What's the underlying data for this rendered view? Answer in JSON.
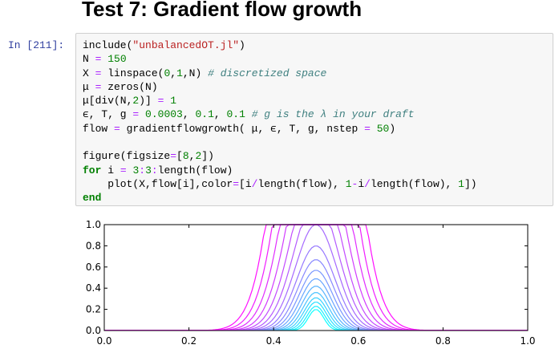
{
  "heading": "Test 7: Gradient flow growth",
  "cell": {
    "prompt": "In [211]:",
    "lines": [
      [
        [
          "fn",
          "include("
        ],
        [
          "str",
          "\"unbalancedOT.jl\""
        ],
        [
          "fn",
          ")"
        ]
      ],
      [
        [
          "fn",
          "N "
        ],
        [
          "op",
          "="
        ],
        [
          "fn",
          " "
        ],
        [
          "num",
          "150"
        ]
      ],
      [
        [
          "fn",
          "X "
        ],
        [
          "op",
          "="
        ],
        [
          "fn",
          " linspace("
        ],
        [
          "num",
          "0"
        ],
        [
          "fn",
          ","
        ],
        [
          "num",
          "1"
        ],
        [
          "fn",
          ",N) "
        ],
        [
          "cm",
          "# discretized space"
        ]
      ],
      [
        [
          "fn",
          "μ "
        ],
        [
          "op",
          "="
        ],
        [
          "fn",
          " zeros(N)"
        ]
      ],
      [
        [
          "fn",
          "μ[div(N,"
        ],
        [
          "num",
          "2"
        ],
        [
          "fn",
          ")] "
        ],
        [
          "op",
          "="
        ],
        [
          "fn",
          " "
        ],
        [
          "num",
          "1"
        ]
      ],
      [
        [
          "fn",
          "ϵ, T, g "
        ],
        [
          "op",
          "="
        ],
        [
          "fn",
          " "
        ],
        [
          "num",
          "0.0003"
        ],
        [
          "fn",
          ", "
        ],
        [
          "num",
          "0.1"
        ],
        [
          "fn",
          ", "
        ],
        [
          "num",
          "0.1"
        ],
        [
          "fn",
          " "
        ],
        [
          "cm",
          "# g is the λ in your draft"
        ]
      ],
      [
        [
          "fn",
          "flow "
        ],
        [
          "op",
          "="
        ],
        [
          "fn",
          " gradientflowgrowth( μ, ϵ, T, g, nstep "
        ],
        [
          "op",
          "="
        ],
        [
          "fn",
          " "
        ],
        [
          "num",
          "50"
        ],
        [
          "fn",
          ")"
        ]
      ],
      [],
      [
        [
          "fn",
          "figure(figsize"
        ],
        [
          "op",
          "="
        ],
        [
          "fn",
          "["
        ],
        [
          "num",
          "8"
        ],
        [
          "fn",
          ","
        ],
        [
          "num",
          "2"
        ],
        [
          "fn",
          "])"
        ]
      ],
      [
        [
          "kw",
          "for"
        ],
        [
          "fn",
          " i "
        ],
        [
          "op",
          "="
        ],
        [
          "fn",
          " "
        ],
        [
          "num",
          "3"
        ],
        [
          "op",
          ":"
        ],
        [
          "num",
          "3"
        ],
        [
          "op",
          ":"
        ],
        [
          "fn",
          "length(flow)"
        ]
      ],
      [
        [
          "fn",
          "    plot(X,flow[i],color"
        ],
        [
          "op",
          "="
        ],
        [
          "fn",
          "[i"
        ],
        [
          "op",
          "/"
        ],
        [
          "fn",
          "length(flow), "
        ],
        [
          "num",
          "1"
        ],
        [
          "op",
          "-"
        ],
        [
          "fn",
          "i"
        ],
        [
          "op",
          "/"
        ],
        [
          "fn",
          "length(flow), "
        ],
        [
          "num",
          "1"
        ],
        [
          "fn",
          "])"
        ]
      ],
      [
        [
          "kw",
          "end"
        ]
      ]
    ]
  },
  "colors": {
    "start": "#00ffff",
    "end": "#ff00ff",
    "prompt": "#303f9f"
  },
  "chart_data": {
    "type": "line",
    "xlim": [
      0,
      1
    ],
    "ylim": [
      0,
      1
    ],
    "xticks": [
      "0.0",
      "0.2",
      "0.4",
      "0.6",
      "0.8",
      "1.0"
    ],
    "yticks": [
      "0.0",
      "0.2",
      "0.4",
      "0.6",
      "0.8",
      "1.0"
    ],
    "grid": false,
    "legend": "none",
    "series": [
      {
        "center": 0.5,
        "peak": 0.2,
        "width": 0.018,
        "cap": 1.0,
        "color": "#0fffff"
      },
      {
        "center": 0.5,
        "peak": 0.23,
        "width": 0.021,
        "cap": 1.0,
        "color": "#1ef0ff"
      },
      {
        "center": 0.5,
        "peak": 0.27,
        "width": 0.024,
        "cap": 1.0,
        "color": "#2de1ff"
      },
      {
        "center": 0.5,
        "peak": 0.31,
        "width": 0.027,
        "cap": 1.0,
        "color": "#3cd2ff"
      },
      {
        "center": 0.5,
        "peak": 0.36,
        "width": 0.03,
        "cap": 1.0,
        "color": "#4bc3ff"
      },
      {
        "center": 0.5,
        "peak": 0.42,
        "width": 0.033,
        "cap": 1.0,
        "color": "#5ab4ff"
      },
      {
        "center": 0.5,
        "peak": 0.49,
        "width": 0.036,
        "cap": 1.0,
        "color": "#69a5ff"
      },
      {
        "center": 0.5,
        "peak": 0.57,
        "width": 0.039,
        "cap": 1.0,
        "color": "#7896ff"
      },
      {
        "center": 0.5,
        "peak": 0.67,
        "width": 0.042,
        "cap": 1.0,
        "color": "#8787ff"
      },
      {
        "center": 0.5,
        "peak": 0.8,
        "width": 0.045,
        "cap": 1.0,
        "color": "#9678ff"
      },
      {
        "center": 0.5,
        "peak": 1.0,
        "width": 0.048,
        "cap": 1.0,
        "color": "#a569ff"
      },
      {
        "center": 0.5,
        "peak": 1.25,
        "width": 0.051,
        "cap": 1.0,
        "color": "#b45aff"
      },
      {
        "center": 0.5,
        "peak": 1.6,
        "width": 0.054,
        "cap": 1.0,
        "color": "#c34bff"
      },
      {
        "center": 0.5,
        "peak": 2.1,
        "width": 0.057,
        "cap": 1.0,
        "color": "#d23cff"
      },
      {
        "center": 0.5,
        "peak": 2.8,
        "width": 0.06,
        "cap": 1.0,
        "color": "#e12dff"
      },
      {
        "center": 0.5,
        "peak": 3.8,
        "width": 0.063,
        "cap": 1.0,
        "color": "#f01eff"
      },
      {
        "center": 0.5,
        "peak": 5.2,
        "width": 0.066,
        "cap": 1.0,
        "color": "#ff0fff"
      }
    ]
  }
}
